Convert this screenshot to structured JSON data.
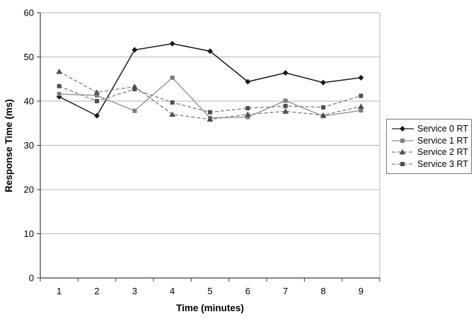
{
  "chart_data": {
    "type": "line",
    "title": "",
    "xlabel": "Time (minutes)",
    "ylabel": "Response Time (ms)",
    "x": [
      1,
      2,
      3,
      4,
      5,
      6,
      7,
      8,
      9
    ],
    "ylim": [
      0,
      60
    ],
    "y_tick_step": 10,
    "y_ticks": [
      0,
      10,
      20,
      30,
      40,
      50,
      60
    ],
    "grid": true,
    "legend_position": "right",
    "series": [
      {
        "name": "Service 0 RT",
        "values": [
          41.0,
          36.7,
          51.6,
          53.0,
          51.3,
          44.4,
          46.4,
          44.2,
          45.3
        ],
        "color": "#1a1a1a",
        "marker": "diamond",
        "marker_color": "#1a1a1a",
        "dash": ""
      },
      {
        "name": "Service 1 RT",
        "values": [
          41.6,
          41.3,
          37.8,
          45.3,
          36.2,
          36.4,
          40.1,
          36.6,
          37.9
        ],
        "color": "#8c8c8c",
        "marker": "square",
        "marker_color": "#7d7d7d",
        "dash": ""
      },
      {
        "name": "Service 2 RT",
        "values": [
          46.7,
          42.0,
          43.3,
          37.0,
          35.9,
          37.0,
          37.7,
          36.8,
          38.8
        ],
        "color": "#7d7d7d",
        "marker": "triangle",
        "marker_color": "#4f4f4f",
        "dash": "5,3"
      },
      {
        "name": "Service 3 RT",
        "values": [
          43.4,
          40.0,
          42.7,
          39.7,
          37.5,
          38.4,
          38.9,
          38.6,
          41.2
        ],
        "color": "#7d7d7d",
        "marker": "square",
        "marker_color": "#4f4f4f",
        "dash": "5,3"
      }
    ]
  },
  "colors": {
    "grid": "#b5b5b5",
    "axis": "#3c3c3c",
    "background": "#ffffff",
    "legend_border": "#777777"
  }
}
